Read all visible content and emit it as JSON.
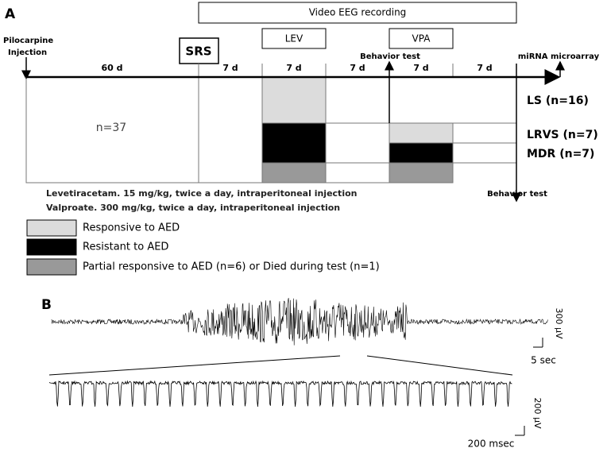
{
  "panel_a": {
    "label": "A",
    "video_eeg": "Video EEG recording",
    "treatments": [
      "LEV",
      "VPA"
    ],
    "pilocarpine": [
      "Pilocarpine",
      "Injection"
    ],
    "srs": "SRS",
    "behavior_test_top": "Behavior test",
    "mirna": "miRNA microarray",
    "durations": [
      "60 d",
      "7 d",
      "7 d",
      "7 d",
      "7 d",
      "7 d"
    ],
    "groups": [
      "LS (n=16)",
      "LRVS (n=7)",
      "MDR (n=7)"
    ],
    "n_total": "n=37",
    "behavior_test_bottom": "Behavior test",
    "doses": [
      "Levetiracetam. 15 mg/kg, twice a day, intraperitoneal injection",
      "Valproate. 300 mg/kg, twice a day, intraperitoneal injection"
    ],
    "legend": [
      "Responsive to AED",
      "Resistant to AED",
      "Partial responsive to AED (n=6) or Died during test (n=1)"
    ]
  },
  "panel_b": {
    "label": "B",
    "scale_top": [
      "300 μV",
      "5 sec"
    ],
    "scale_bottom": [
      "200 μV",
      "200 msec"
    ]
  }
}
